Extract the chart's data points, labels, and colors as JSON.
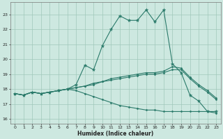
{
  "xlabel": "Humidex (Indice chaleur)",
  "xlim": [
    -0.5,
    23.5
  ],
  "ylim": [
    15.7,
    23.8
  ],
  "yticks": [
    16,
    17,
    18,
    19,
    20,
    21,
    22,
    23
  ],
  "xticks": [
    0,
    1,
    2,
    3,
    4,
    5,
    6,
    7,
    8,
    9,
    10,
    11,
    12,
    13,
    14,
    15,
    16,
    17,
    18,
    19,
    20,
    21,
    22,
    23
  ],
  "bg_color": "#cde8e0",
  "line_color": "#2a7a6a",
  "grid_color": "#a0c8ba",
  "line1_x": [
    0,
    1,
    2,
    3,
    4,
    5,
    6,
    7,
    8,
    9,
    10,
    11,
    12,
    13,
    14,
    15,
    16,
    17,
    18,
    19,
    20,
    21,
    22,
    23
  ],
  "line1_y": [
    17.7,
    17.6,
    17.8,
    17.7,
    17.8,
    17.9,
    18.0,
    18.3,
    19.6,
    19.3,
    20.9,
    22.0,
    22.9,
    22.6,
    22.6,
    23.3,
    22.5,
    23.3,
    19.7,
    19.1,
    17.6,
    17.2,
    16.5,
    16.5
  ],
  "line2_x": [
    0,
    1,
    2,
    3,
    4,
    5,
    6,
    7,
    8,
    9,
    10,
    11,
    12,
    13,
    14,
    15,
    16,
    17,
    18,
    19,
    20,
    21,
    22,
    23
  ],
  "line2_y": [
    17.7,
    17.6,
    17.8,
    17.7,
    17.8,
    17.9,
    18.0,
    18.1,
    18.2,
    18.3,
    18.5,
    18.6,
    18.7,
    18.8,
    18.9,
    19.0,
    19.0,
    19.1,
    19.3,
    19.3,
    18.7,
    18.2,
    17.8,
    17.3
  ],
  "line3_x": [
    0,
    1,
    2,
    3,
    4,
    5,
    6,
    7,
    8,
    9,
    10,
    11,
    12,
    13,
    14,
    15,
    16,
    17,
    18,
    19,
    20,
    21,
    22,
    23
  ],
  "line3_y": [
    17.7,
    17.6,
    17.8,
    17.7,
    17.8,
    17.9,
    18.0,
    18.1,
    18.2,
    18.4,
    18.5,
    18.7,
    18.8,
    18.9,
    19.0,
    19.1,
    19.1,
    19.2,
    19.5,
    19.4,
    18.8,
    18.3,
    17.9,
    17.4
  ],
  "line4_x": [
    0,
    1,
    2,
    3,
    4,
    5,
    6,
    7,
    8,
    9,
    10,
    11,
    12,
    13,
    14,
    15,
    16,
    17,
    18,
    19,
    20,
    21,
    22,
    23
  ],
  "line4_y": [
    17.7,
    17.6,
    17.8,
    17.7,
    17.8,
    17.9,
    18.0,
    17.9,
    17.7,
    17.5,
    17.3,
    17.1,
    16.9,
    16.8,
    16.7,
    16.6,
    16.6,
    16.5,
    16.5,
    16.5,
    16.5,
    16.5,
    16.5,
    16.4
  ]
}
